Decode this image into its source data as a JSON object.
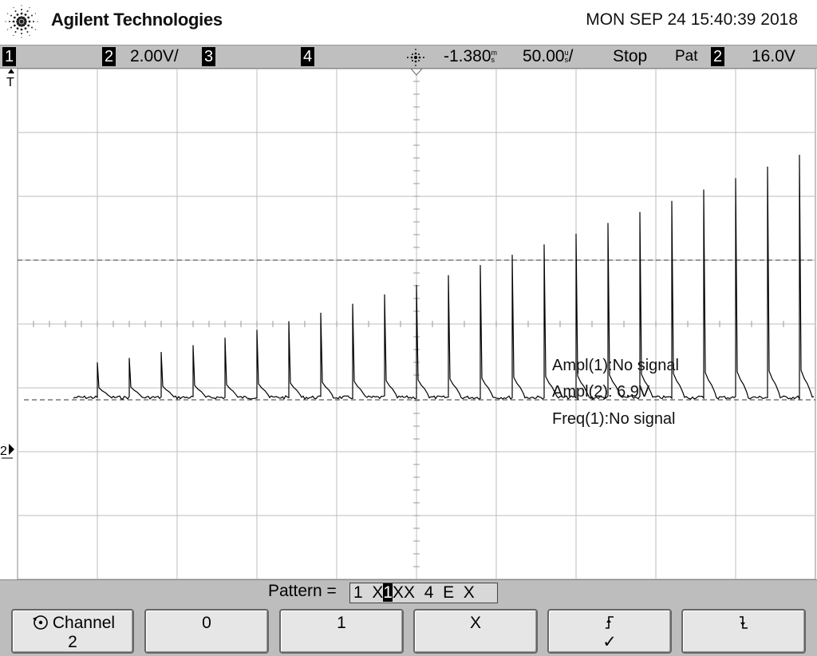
{
  "header": {
    "brand": "Agilent Technologies",
    "datetime": "MON SEP 24 15:40:39 2018"
  },
  "status": {
    "ch1": "1",
    "ch2": "2",
    "ch2_scale": "2.00V/",
    "ch3": "3",
    "ch4": "4",
    "time_offset": "-1.380",
    "time_offset_unit": "m",
    "time_offset_unit2": "s",
    "time_scale": "50.00",
    "time_scale_unit": "u",
    "time_scale_unit2": "s",
    "time_scale_slash": "/",
    "run_state": "Stop",
    "trigger_mode": "Pat",
    "trigger_source": "2",
    "trigger_level": "16.0V"
  },
  "markers": {
    "trigger_t": "T",
    "ch2_ground": "2"
  },
  "measurements": [
    "Ampl(1):No signal",
    "Ampl(2): 6.9V",
    "Freq(1):No signal"
  ],
  "pattern": {
    "label": "Pattern =",
    "value_before": "1  X",
    "value_selected": "1",
    "value_after": "XX  4  E  X"
  },
  "softkeys": [
    {
      "label": "Channel",
      "sub": "2",
      "icon": "rotate-knob-icon"
    },
    {
      "label": "0",
      "sub": ""
    },
    {
      "label": "1",
      "sub": ""
    },
    {
      "label": "X",
      "sub": ""
    },
    {
      "label": "rising-edge",
      "sub": "✓",
      "icon": "rising-edge-icon"
    },
    {
      "label": "falling-edge",
      "sub": "",
      "icon": "falling-edge-icon"
    }
  ],
  "colors": {
    "trace": "#000000",
    "grid": "#bdbdbd",
    "bar": "#bdbdbd",
    "softkey": "#e6e6e6"
  },
  "waveform": {
    "channel": "2",
    "pulse_count": 23,
    "baseline_div": -1.15,
    "first_pulse_peak_div": -0.6,
    "last_pulse_peak_div": 2.65,
    "ref_line_div": 1.0,
    "trace_start_div": -4.3
  }
}
